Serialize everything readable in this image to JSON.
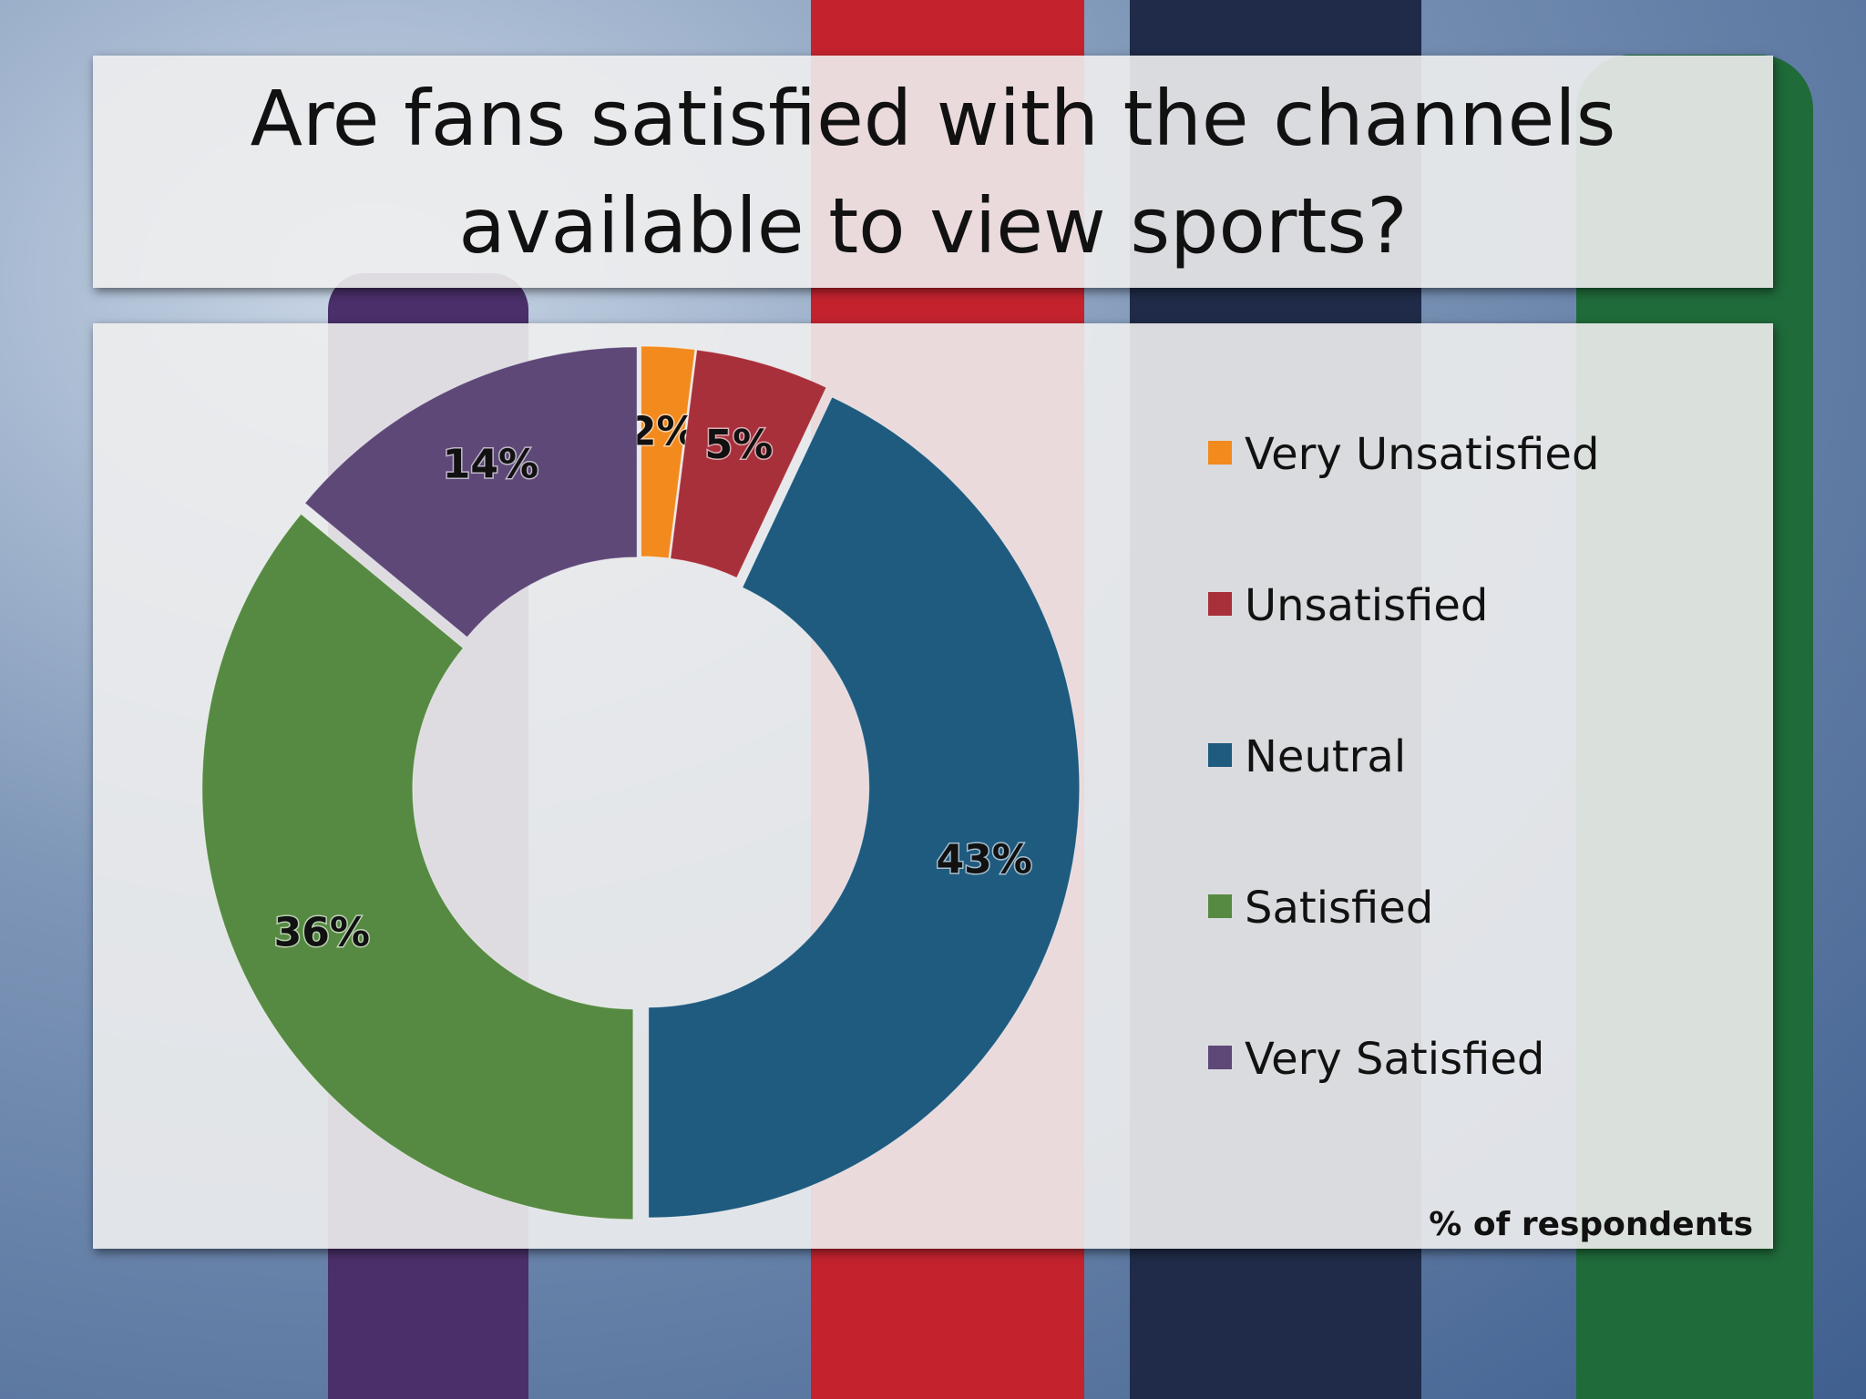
{
  "chart_data": {
    "type": "donut",
    "title": "Are fans satisfied with the channels available to view sports?",
    "categories": [
      "Very Unsatisfied",
      "Unsatisfied",
      "Neutral",
      "Satisfied",
      "Very Satisfied"
    ],
    "values": [
      2,
      5,
      43,
      36,
      14
    ],
    "value_labels": [
      "2%",
      "5%",
      "43%",
      "36%",
      "14%"
    ],
    "colors": [
      "#f28a1e",
      "#a8303b",
      "#1f5a7f",
      "#568a42",
      "#5e4878"
    ],
    "note": "% of respondents"
  }
}
